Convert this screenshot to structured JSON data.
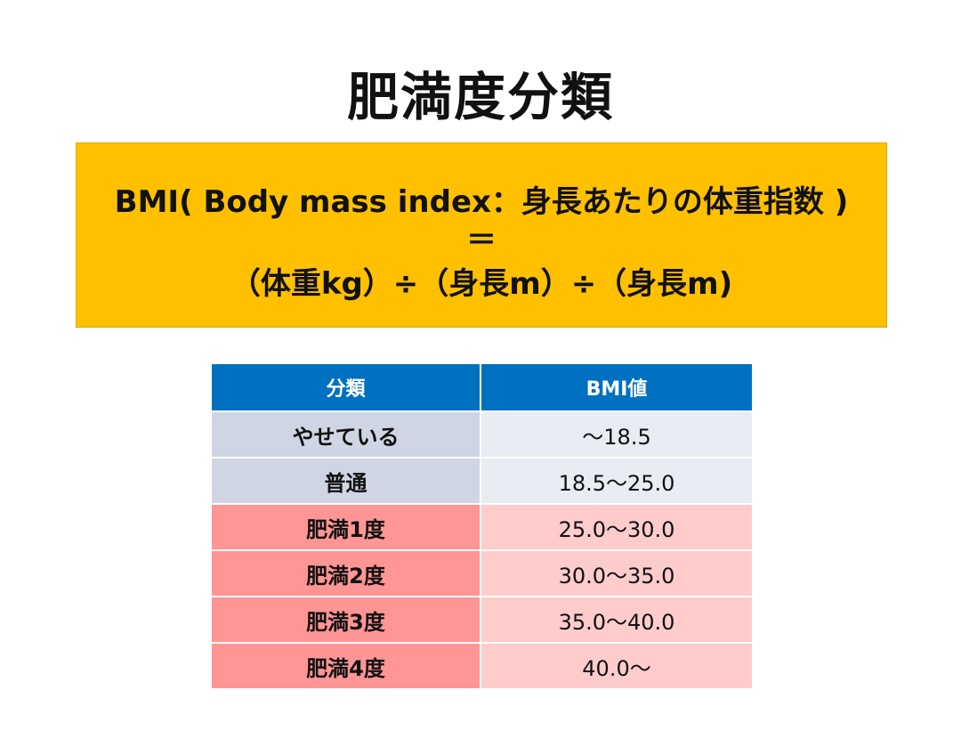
{
  "title": "肥満度分類",
  "formula": {
    "line1": "BMI( Body mass index：身長あたりの体重指数 )",
    "line2": "＝",
    "line3": "（体重kg）÷（身長m）÷（身長m)"
  },
  "table": {
    "headers": [
      "分類",
      "BMI値"
    ],
    "rows": [
      {
        "category": "やせている",
        "bmi": "～18.5"
      },
      {
        "category": "普通",
        "bmi": "18.5～25.0"
      },
      {
        "category": "肥満1度",
        "bmi": "25.0～30.0"
      },
      {
        "category": "肥満2度",
        "bmi": "30.0～35.0"
      },
      {
        "category": "肥満3度",
        "bmi": "35.0～40.0"
      },
      {
        "category": "肥満4度",
        "bmi": "40.0～"
      }
    ]
  },
  "colors": {
    "formula_background": "#ffc000",
    "header_background": "#0070c0",
    "normal_category": "#cfd5e3",
    "normal_value": "#e9ecf3",
    "obese_category": "#ff9595",
    "obese_value": "#ffcccc"
  }
}
